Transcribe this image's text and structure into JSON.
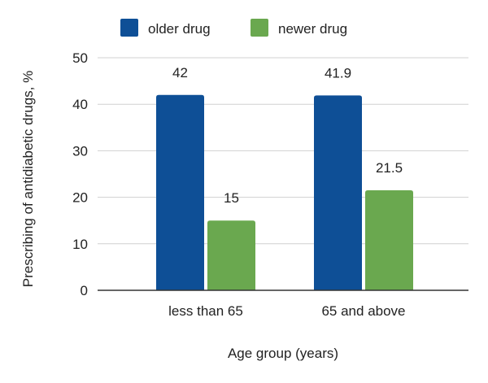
{
  "chart_data": {
    "type": "bar",
    "title": "",
    "xlabel": "Age group (years)",
    "ylabel": "Prescribing of antidiabetic drugs, %",
    "categories": [
      "less than 65",
      "65 and above"
    ],
    "series": [
      {
        "name": "older drug",
        "color": "#0e4f96",
        "values": [
          42,
          41.9
        ],
        "labels": [
          "42",
          "41.9"
        ]
      },
      {
        "name": "newer drug",
        "color": "#6aa84f",
        "values": [
          15,
          21.5
        ],
        "labels": [
          "15",
          "21.5"
        ]
      }
    ],
    "ylim": [
      0,
      50
    ],
    "yticks": [
      0,
      10,
      20,
      30,
      40,
      50
    ],
    "grid": true,
    "legend_position": "top"
  }
}
